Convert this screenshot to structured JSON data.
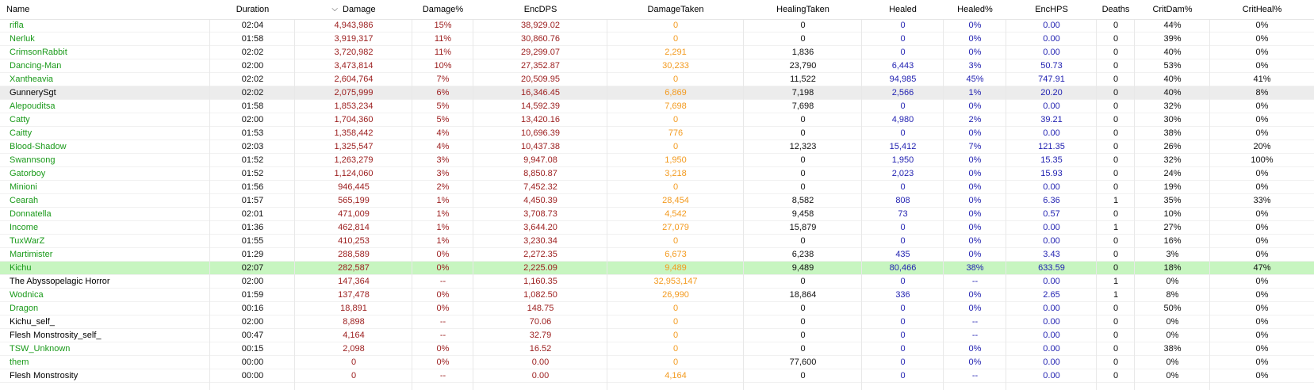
{
  "colors": {
    "name_green": "#1a9a1a",
    "damage_red": "#9b1c1c",
    "taken_orange": "#f39a1e",
    "heal_blue": "#1f1fb0",
    "selected_row_green": "#c7f5c0",
    "hover_row_gray": "#ececec"
  },
  "columns": [
    {
      "key": "name",
      "label": "Name"
    },
    {
      "key": "duration",
      "label": "Duration"
    },
    {
      "key": "damage",
      "label": "Damage",
      "sorted": true,
      "sort_icon": "sort-descending-icon"
    },
    {
      "key": "damage_pct",
      "label": "Damage%"
    },
    {
      "key": "encdps",
      "label": "EncDPS"
    },
    {
      "key": "damage_taken",
      "label": "DamageTaken"
    },
    {
      "key": "healing_taken",
      "label": "HealingTaken"
    },
    {
      "key": "healed",
      "label": "Healed"
    },
    {
      "key": "healed_pct",
      "label": "Healed%"
    },
    {
      "key": "enchps",
      "label": "EncHPS"
    },
    {
      "key": "deaths",
      "label": "Deaths"
    },
    {
      "key": "critdam",
      "label": "CritDam%"
    },
    {
      "key": "critheal",
      "label": "CritHeal%"
    }
  ],
  "rows": [
    {
      "name": "rifla",
      "duration": "02:04",
      "damage": "4,943,986",
      "damage_pct": "15%",
      "encdps": "38,929.02",
      "damage_taken": "0",
      "healing_taken": "0",
      "healed": "0",
      "healed_pct": "0%",
      "enchps": "0.00",
      "deaths": "0",
      "critdam": "44%",
      "critheal": "0%",
      "name_color": "green"
    },
    {
      "name": "Nerluk",
      "duration": "01:58",
      "damage": "3,919,317",
      "damage_pct": "11%",
      "encdps": "30,860.76",
      "damage_taken": "0",
      "healing_taken": "0",
      "healed": "0",
      "healed_pct": "0%",
      "enchps": "0.00",
      "deaths": "0",
      "critdam": "39%",
      "critheal": "0%",
      "name_color": "green"
    },
    {
      "name": "CrimsonRabbit",
      "duration": "02:02",
      "damage": "3,720,982",
      "damage_pct": "11%",
      "encdps": "29,299.07",
      "damage_taken": "2,291",
      "healing_taken": "1,836",
      "healed": "0",
      "healed_pct": "0%",
      "enchps": "0.00",
      "deaths": "0",
      "critdam": "40%",
      "critheal": "0%",
      "name_color": "green"
    },
    {
      "name": "Dancing-Man",
      "duration": "02:00",
      "damage": "3,473,814",
      "damage_pct": "10%",
      "encdps": "27,352.87",
      "damage_taken": "30,233",
      "healing_taken": "23,790",
      "healed": "6,443",
      "healed_pct": "3%",
      "enchps": "50.73",
      "deaths": "0",
      "critdam": "53%",
      "critheal": "0%",
      "name_color": "green"
    },
    {
      "name": "Xantheavia",
      "duration": "02:02",
      "damage": "2,604,764",
      "damage_pct": "7%",
      "encdps": "20,509.95",
      "damage_taken": "0",
      "healing_taken": "11,522",
      "healed": "94,985",
      "healed_pct": "45%",
      "enchps": "747.91",
      "deaths": "0",
      "critdam": "40%",
      "critheal": "41%",
      "name_color": "green"
    },
    {
      "name": "GunnerySgt",
      "duration": "02:02",
      "damage": "2,075,999",
      "damage_pct": "6%",
      "encdps": "16,346.45",
      "damage_taken": "6,869",
      "healing_taken": "7,198",
      "healed": "2,566",
      "healed_pct": "1%",
      "enchps": "20.20",
      "deaths": "0",
      "critdam": "40%",
      "critheal": "8%",
      "name_color": "black",
      "highlight": "gray"
    },
    {
      "name": "Alepouditsa",
      "duration": "01:58",
      "damage": "1,853,234",
      "damage_pct": "5%",
      "encdps": "14,592.39",
      "damage_taken": "7,698",
      "healing_taken": "7,698",
      "healed": "0",
      "healed_pct": "0%",
      "enchps": "0.00",
      "deaths": "0",
      "critdam": "32%",
      "critheal": "0%",
      "name_color": "green"
    },
    {
      "name": "Catty",
      "duration": "02:00",
      "damage": "1,704,360",
      "damage_pct": "5%",
      "encdps": "13,420.16",
      "damage_taken": "0",
      "healing_taken": "0",
      "healed": "4,980",
      "healed_pct": "2%",
      "enchps": "39.21",
      "deaths": "0",
      "critdam": "30%",
      "critheal": "0%",
      "name_color": "green"
    },
    {
      "name": "Caitty",
      "duration": "01:53",
      "damage": "1,358,442",
      "damage_pct": "4%",
      "encdps": "10,696.39",
      "damage_taken": "776",
      "healing_taken": "0",
      "healed": "0",
      "healed_pct": "0%",
      "enchps": "0.00",
      "deaths": "0",
      "critdam": "38%",
      "critheal": "0%",
      "name_color": "green"
    },
    {
      "name": "Blood-Shadow",
      "duration": "02:03",
      "damage": "1,325,547",
      "damage_pct": "4%",
      "encdps": "10,437.38",
      "damage_taken": "0",
      "healing_taken": "12,323",
      "healed": "15,412",
      "healed_pct": "7%",
      "enchps": "121.35",
      "deaths": "0",
      "critdam": "26%",
      "critheal": "20%",
      "name_color": "green"
    },
    {
      "name": "Swannsong",
      "duration": "01:52",
      "damage": "1,263,279",
      "damage_pct": "3%",
      "encdps": "9,947.08",
      "damage_taken": "1,950",
      "healing_taken": "0",
      "healed": "1,950",
      "healed_pct": "0%",
      "enchps": "15.35",
      "deaths": "0",
      "critdam": "32%",
      "critheal": "100%",
      "name_color": "green"
    },
    {
      "name": "Gatorboy",
      "duration": "01:52",
      "damage": "1,124,060",
      "damage_pct": "3%",
      "encdps": "8,850.87",
      "damage_taken": "3,218",
      "healing_taken": "0",
      "healed": "2,023",
      "healed_pct": "0%",
      "enchps": "15.93",
      "deaths": "0",
      "critdam": "24%",
      "critheal": "0%",
      "name_color": "green"
    },
    {
      "name": "Minioni",
      "duration": "01:56",
      "damage": "946,445",
      "damage_pct": "2%",
      "encdps": "7,452.32",
      "damage_taken": "0",
      "healing_taken": "0",
      "healed": "0",
      "healed_pct": "0%",
      "enchps": "0.00",
      "deaths": "0",
      "critdam": "19%",
      "critheal": "0%",
      "name_color": "green"
    },
    {
      "name": "Cearah",
      "duration": "01:57",
      "damage": "565,199",
      "damage_pct": "1%",
      "encdps": "4,450.39",
      "damage_taken": "28,454",
      "healing_taken": "8,582",
      "healed": "808",
      "healed_pct": "0%",
      "enchps": "6.36",
      "deaths": "1",
      "critdam": "35%",
      "critheal": "33%",
      "name_color": "green"
    },
    {
      "name": "Donnatella",
      "duration": "02:01",
      "damage": "471,009",
      "damage_pct": "1%",
      "encdps": "3,708.73",
      "damage_taken": "4,542",
      "healing_taken": "9,458",
      "healed": "73",
      "healed_pct": "0%",
      "enchps": "0.57",
      "deaths": "0",
      "critdam": "10%",
      "critheal": "0%",
      "name_color": "green"
    },
    {
      "name": "Income",
      "duration": "01:36",
      "damage": "462,814",
      "damage_pct": "1%",
      "encdps": "3,644.20",
      "damage_taken": "27,079",
      "healing_taken": "15,879",
      "healed": "0",
      "healed_pct": "0%",
      "enchps": "0.00",
      "deaths": "1",
      "critdam": "27%",
      "critheal": "0%",
      "name_color": "green"
    },
    {
      "name": "TuxWarZ",
      "duration": "01:55",
      "damage": "410,253",
      "damage_pct": "1%",
      "encdps": "3,230.34",
      "damage_taken": "0",
      "healing_taken": "0",
      "healed": "0",
      "healed_pct": "0%",
      "enchps": "0.00",
      "deaths": "0",
      "critdam": "16%",
      "critheal": "0%",
      "name_color": "green"
    },
    {
      "name": "Martimister",
      "duration": "01:29",
      "damage": "288,589",
      "damage_pct": "0%",
      "encdps": "2,272.35",
      "damage_taken": "6,673",
      "healing_taken": "6,238",
      "healed": "435",
      "healed_pct": "0%",
      "enchps": "3.43",
      "deaths": "0",
      "critdam": "3%",
      "critheal": "0%",
      "name_color": "green"
    },
    {
      "name": "Kichu",
      "duration": "02:07",
      "damage": "282,587",
      "damage_pct": "0%",
      "encdps": "2,225.09",
      "damage_taken": "9,489",
      "healing_taken": "9,489",
      "healed": "80,466",
      "healed_pct": "38%",
      "enchps": "633.59",
      "deaths": "0",
      "critdam": "18%",
      "critheal": "47%",
      "name_color": "green",
      "highlight": "green"
    },
    {
      "name": "The Abyssopelagic Horror",
      "duration": "02:00",
      "damage": "147,364",
      "damage_pct": "--",
      "encdps": "1,160.35",
      "damage_taken": "32,953,147",
      "healing_taken": "0",
      "healed": "0",
      "healed_pct": "--",
      "enchps": "0.00",
      "deaths": "1",
      "critdam": "0%",
      "critheal": "0%",
      "name_color": "black"
    },
    {
      "name": "Wodnica",
      "duration": "01:59",
      "damage": "137,478",
      "damage_pct": "0%",
      "encdps": "1,082.50",
      "damage_taken": "26,990",
      "healing_taken": "18,864",
      "healed": "336",
      "healed_pct": "0%",
      "enchps": "2.65",
      "deaths": "1",
      "critdam": "8%",
      "critheal": "0%",
      "name_color": "green"
    },
    {
      "name": "Dragon",
      "duration": "00:16",
      "damage": "18,891",
      "damage_pct": "0%",
      "encdps": "148.75",
      "damage_taken": "0",
      "healing_taken": "0",
      "healed": "0",
      "healed_pct": "0%",
      "enchps": "0.00",
      "deaths": "0",
      "critdam": "50%",
      "critheal": "0%",
      "name_color": "green"
    },
    {
      "name": "Kichu_self_",
      "duration": "02:00",
      "damage": "8,898",
      "damage_pct": "--",
      "encdps": "70.06",
      "damage_taken": "0",
      "healing_taken": "0",
      "healed": "0",
      "healed_pct": "--",
      "enchps": "0.00",
      "deaths": "0",
      "critdam": "0%",
      "critheal": "0%",
      "name_color": "black"
    },
    {
      "name": "Flesh Monstrosity_self_",
      "duration": "00:47",
      "damage": "4,164",
      "damage_pct": "--",
      "encdps": "32.79",
      "damage_taken": "0",
      "healing_taken": "0",
      "healed": "0",
      "healed_pct": "--",
      "enchps": "0.00",
      "deaths": "0",
      "critdam": "0%",
      "critheal": "0%",
      "name_color": "black"
    },
    {
      "name": "TSW_Unknown",
      "duration": "00:15",
      "damage": "2,098",
      "damage_pct": "0%",
      "encdps": "16.52",
      "damage_taken": "0",
      "healing_taken": "0",
      "healed": "0",
      "healed_pct": "0%",
      "enchps": "0.00",
      "deaths": "0",
      "critdam": "38%",
      "critheal": "0%",
      "name_color": "green"
    },
    {
      "name": "them",
      "duration": "00:00",
      "damage": "0",
      "damage_pct": "0%",
      "encdps": "0.00",
      "damage_taken": "0",
      "healing_taken": "77,600",
      "healed": "0",
      "healed_pct": "0%",
      "enchps": "0.00",
      "deaths": "0",
      "critdam": "0%",
      "critheal": "0%",
      "name_color": "green"
    },
    {
      "name": "Flesh Monstrosity",
      "duration": "00:00",
      "damage": "0",
      "damage_pct": "--",
      "encdps": "0.00",
      "damage_taken": "4,164",
      "healing_taken": "0",
      "healed": "0",
      "healed_pct": "--",
      "enchps": "0.00",
      "deaths": "0",
      "critdam": "0%",
      "critheal": "0%",
      "name_color": "black"
    }
  ]
}
